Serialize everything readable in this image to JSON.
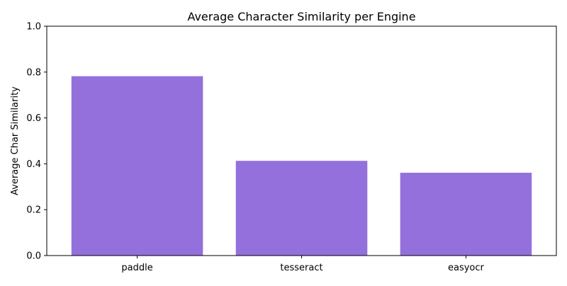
{
  "chart_data": {
    "type": "bar",
    "title": "Average Character Similarity per Engine",
    "xlabel": "",
    "ylabel": "Average Char Similarity",
    "categories": [
      "paddle",
      "tesseract",
      "easyocr"
    ],
    "values": [
      0.782,
      0.413,
      0.361
    ],
    "ylim": [
      0,
      1.0
    ],
    "yticks": [
      "0.0",
      "0.2",
      "0.4",
      "0.6",
      "0.8",
      "1.0"
    ],
    "bar_color": "#9370db",
    "grid": false,
    "legend": "none"
  }
}
